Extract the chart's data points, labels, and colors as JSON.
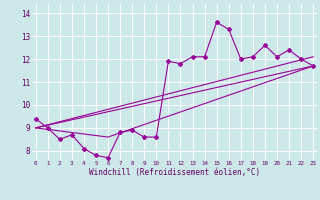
{
  "xlabel": "Windchill (Refroidissement éolien,°C)",
  "bg_color": "#cce8e8",
  "line_color": "#990099",
  "grid_color": "#ffffff",
  "x_ticks": [
    0,
    1,
    2,
    3,
    4,
    5,
    6,
    7,
    8,
    9,
    10,
    11,
    12,
    13,
    14,
    15,
    16,
    17,
    18,
    19,
    20,
    21,
    22,
    23
  ],
  "y_ticks": [
    8,
    9,
    10,
    11,
    12,
    13,
    14
  ],
  "xlim": [
    -0.3,
    23.3
  ],
  "ylim": [
    7.6,
    14.4
  ],
  "main_line_x": [
    0,
    1,
    2,
    3,
    4,
    5,
    6,
    7,
    8,
    9,
    10,
    11,
    12,
    13,
    14,
    15,
    16,
    17,
    18,
    19,
    20,
    21,
    22,
    23
  ],
  "main_line_y": [
    9.4,
    9.0,
    8.5,
    8.7,
    8.1,
    7.8,
    7.7,
    8.8,
    8.9,
    8.6,
    8.6,
    11.9,
    11.8,
    12.1,
    12.1,
    13.6,
    13.3,
    12.0,
    12.1,
    12.6,
    12.1,
    12.4,
    12.0,
    11.7
  ],
  "line2_x": [
    0,
    23
  ],
  "line2_y": [
    9.0,
    12.1
  ],
  "line3_x": [
    0,
    23
  ],
  "line3_y": [
    9.0,
    11.7
  ],
  "line4_x": [
    0,
    6,
    23
  ],
  "line4_y": [
    9.0,
    8.6,
    11.7
  ]
}
